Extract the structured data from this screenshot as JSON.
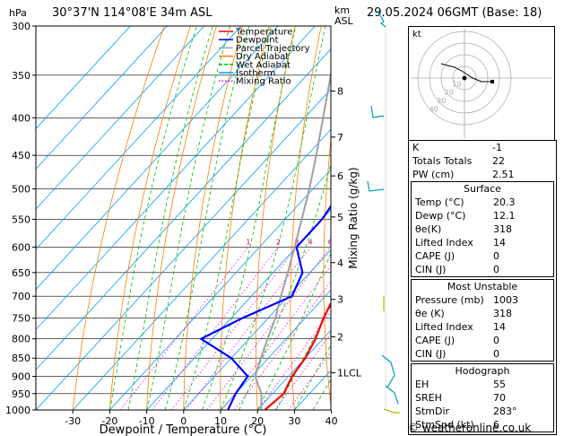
{
  "header": {
    "location": "30°37'N  114°08'E  34m  ASL",
    "datetime": "29.05.2024  06GMT  (Base: 18)",
    "hpa_label": "hPa",
    "km_label": "km",
    "asl_label": "ASL"
  },
  "footer": {
    "credit": "© weatheronline.co.uk"
  },
  "legend": [
    {
      "label": "Temperature",
      "color": "#ff0000"
    },
    {
      "label": "Dewpoint",
      "color": "#0000ff"
    },
    {
      "label": "Parcel Trajectory",
      "color": "#a0a0a0"
    },
    {
      "label": "Dry Adiabat",
      "color": "#ff8000"
    },
    {
      "label": "Wet Adiabat",
      "color": "#00c000"
    },
    {
      "label": "Isotherm",
      "color": "#00a0ff"
    },
    {
      "label": "Mixing Ratio",
      "color": "#ff00ff"
    }
  ],
  "chart_data": {
    "type": "line",
    "title": "",
    "xlabel": "Dewpoint / Temperature (°C)",
    "ylabel": "hPa",
    "x_ticks": [
      -30,
      -20,
      -10,
      0,
      10,
      20,
      30,
      40
    ],
    "xlim": [
      -40,
      40
    ],
    "y_scale": "log",
    "p_levels": [
      300,
      350,
      400,
      450,
      500,
      550,
      600,
      650,
      700,
      750,
      800,
      850,
      900,
      950,
      1000
    ],
    "ylim": [
      1000,
      300
    ],
    "km_ticks": [
      {
        "km": "1",
        "p": 890,
        "text": "1LCL"
      },
      {
        "km": "2",
        "p": 795,
        "text": "2"
      },
      {
        "km": "3",
        "p": 707,
        "text": "3"
      },
      {
        "km": "4",
        "p": 630,
        "text": "4"
      },
      {
        "km": "5",
        "p": 546,
        "text": "5"
      },
      {
        "km": "6",
        "p": 480,
        "text": "6"
      },
      {
        "km": "7",
        "p": 425,
        "text": "7"
      },
      {
        "km": "8",
        "p": 368,
        "text": "8"
      }
    ],
    "mixing_ratio_label": "Mixing Ratio (g/kg)",
    "mixing_ratio_values": [
      "1",
      "2",
      "3",
      "4",
      "6",
      "8",
      "10",
      "15",
      "20",
      "25"
    ],
    "series": [
      {
        "name": "Temperature",
        "color": "#ff0000",
        "p": [
          1000,
          950,
          900,
          850,
          800,
          750,
          700,
          650,
          600,
          550,
          500,
          450,
          400,
          350
        ],
        "t": [
          22.0,
          23.0,
          21.0,
          20.0,
          18.0,
          15.0,
          12.5,
          8.0,
          3.0,
          -1.5,
          -5.0,
          -10.0,
          -17.0,
          -27.0
        ]
      },
      {
        "name": "Dewpoint",
        "color": "#0000ff",
        "p": [
          1000,
          950,
          900,
          850,
          800,
          750,
          700,
          650,
          600,
          550,
          500,
          450,
          400,
          350,
          300
        ],
        "t": [
          12.0,
          10.0,
          9.0,
          0.0,
          -13.0,
          -7.0,
          1.0,
          -2.0,
          -10.0,
          -10.0,
          -12.0,
          -17.0,
          -23.0,
          -32.0,
          -45.0
        ]
      },
      {
        "name": "Parcel Trajectory",
        "color": "#a0a0a0",
        "p": [
          1000,
          950,
          900,
          850,
          800,
          750,
          700,
          650,
          600,
          550,
          500,
          450,
          400,
          350,
          300
        ],
        "t": [
          21.0,
          17.0,
          11.0,
          8.0,
          5.0,
          2.0,
          -2.0,
          -6.0,
          -10.5,
          -15.5,
          -21.0,
          -27.5,
          -35.0,
          -43.5,
          -53.5
        ]
      }
    ]
  },
  "hodograph": {
    "label": "kt",
    "rings": [
      "10",
      "20",
      "30",
      "40"
    ]
  },
  "indices": [
    {
      "label": "K",
      "value": "-1"
    },
    {
      "label": "Totals Totals",
      "value": "22"
    },
    {
      "label": "PW (cm)",
      "value": "2.51"
    }
  ],
  "surface": {
    "title": "Surface",
    "rows": [
      {
        "label": "Temp (°C)",
        "value": "20.3"
      },
      {
        "label": "Dewp (°C)",
        "value": "12.1"
      },
      {
        "label": "θe(K)",
        "value": "318"
      },
      {
        "label": "Lifted Index",
        "value": "14"
      },
      {
        "label": "CAPE (J)",
        "value": "0"
      },
      {
        "label": "CIN (J)",
        "value": "0"
      }
    ]
  },
  "most_unstable": {
    "title": "Most Unstable",
    "rows": [
      {
        "label": "Pressure (mb)",
        "value": "1003"
      },
      {
        "label": "θe (K)",
        "value": "318"
      },
      {
        "label": "Lifted Index",
        "value": "14"
      },
      {
        "label": "CAPE (J)",
        "value": "0"
      },
      {
        "label": "CIN (J)",
        "value": "0"
      }
    ]
  },
  "hodograph_table": {
    "title": "Hodograph",
    "rows": [
      {
        "label": "EH",
        "value": "55"
      },
      {
        "label": "SREH",
        "value": "70"
      },
      {
        "label": "StmDir",
        "value": "283°"
      },
      {
        "label": "StmSpd (kt)",
        "value": "6"
      }
    ]
  }
}
